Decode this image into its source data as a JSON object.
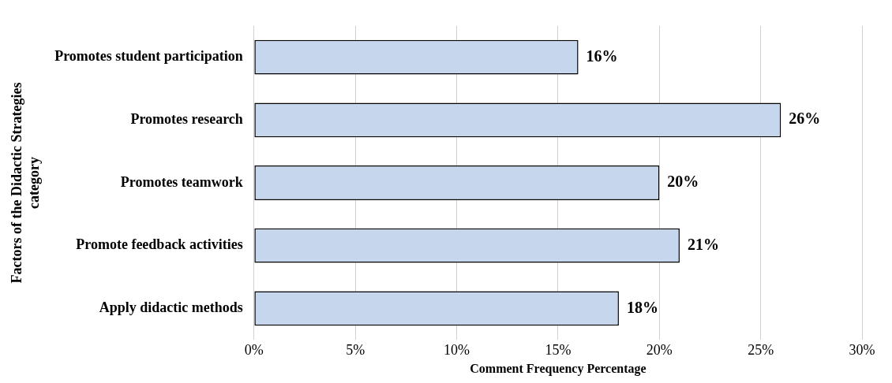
{
  "chart_data": {
    "type": "bar",
    "orientation": "horizontal",
    "xlabel": "Comment Frequency Percentage",
    "ylabel": "Factors of the Didactic Strategies category",
    "categories": [
      "Promotes student participation",
      "Promotes research",
      "Promotes teamwork",
      "Promote feedback activities",
      "Apply didactic methods"
    ],
    "values": [
      16,
      26,
      20,
      21,
      18
    ],
    "color": "#c6d6ec",
    "value_labels": [
      "16%",
      "26%",
      "20%",
      "21%",
      "18%"
    ],
    "xlim": [
      0,
      30
    ],
    "xticks": [
      {
        "value": 0,
        "label": "0%"
      },
      {
        "value": 5,
        "label": "5%"
      },
      {
        "value": 10,
        "label": "10%"
      },
      {
        "value": 15,
        "label": "15%"
      },
      {
        "value": 20,
        "label": "20%"
      },
      {
        "value": 25,
        "label": "25%"
      },
      {
        "value": 30,
        "label": "30%"
      }
    ],
    "grid": "x",
    "legend": false
  }
}
